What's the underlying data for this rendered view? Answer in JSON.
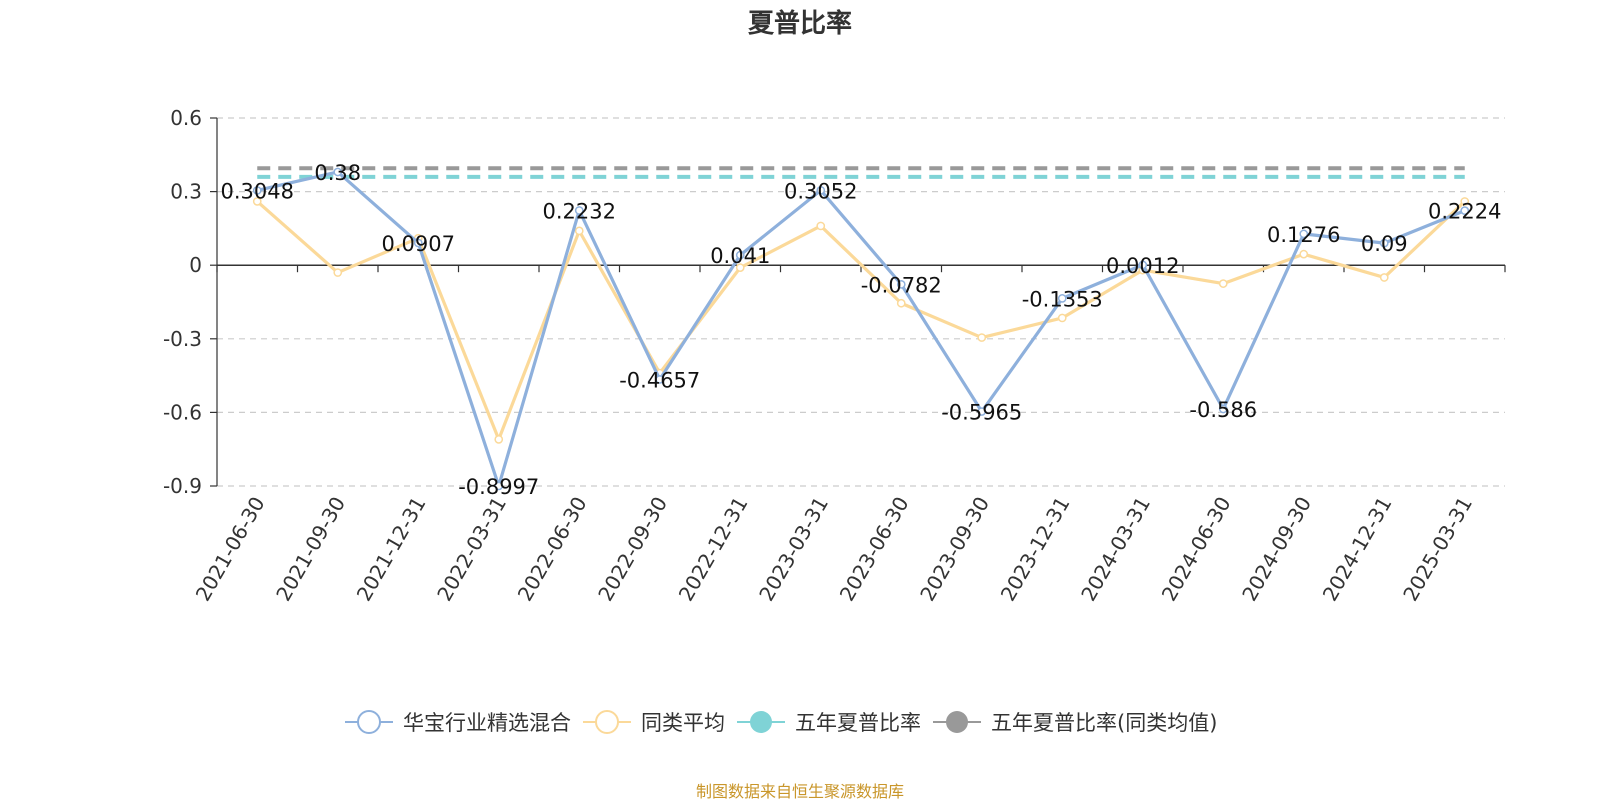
{
  "chart_data": {
    "type": "line",
    "title": "夏普比率",
    "categories": [
      "2021-06-30",
      "2021-09-30",
      "2021-12-31",
      "2022-03-31",
      "2022-06-30",
      "2022-09-30",
      "2022-12-31",
      "2023-03-31",
      "2023-06-30",
      "2023-09-30",
      "2023-12-31",
      "2024-03-31",
      "2024-06-30",
      "2024-09-30",
      "2024-12-31",
      "2025-03-31"
    ],
    "ylim": [
      -0.9,
      0.6
    ],
    "yticks": [
      0.6,
      0.3,
      0,
      -0.3,
      -0.6,
      -0.9
    ],
    "ytick_labels": [
      "0.6",
      "0.3",
      "0",
      "-0.3",
      "-0.6",
      "-0.9"
    ],
    "grid": true,
    "legend_position": "bottom",
    "series": [
      {
        "name": "华宝行业精选混合",
        "color": "#8eb0dc",
        "values": [
          0.3048,
          0.38,
          0.0907,
          -0.8997,
          0.2232,
          -0.4657,
          0.041,
          0.3052,
          -0.0782,
          -0.5965,
          -0.1353,
          0.0012,
          -0.586,
          0.1276,
          0.09,
          0.2224
        ],
        "labels": [
          "0.3048",
          "0.38",
          "0.0907",
          "-0.8997",
          "0.2232",
          "-0.4657",
          "0.041",
          "0.3052",
          "-0.0782",
          "-0.5965",
          "-0.1353",
          "0.0012",
          "-0.586",
          "0.1276",
          "0.09",
          "0.2224"
        ]
      },
      {
        "name": "同类平均",
        "color": "#fbd999",
        "values": [
          0.26,
          -0.03,
          0.11,
          -0.71,
          0.14,
          -0.44,
          -0.01,
          0.16,
          -0.155,
          -0.295,
          -0.215,
          -0.02,
          -0.075,
          0.045,
          -0.05,
          0.26
        ]
      },
      {
        "name": "五年夏普比率",
        "color": "#7fd3d6",
        "constant": 0.36
      },
      {
        "name": "五年夏普比率(同类均值)",
        "color": "#999999",
        "constant": 0.395
      }
    ],
    "source_note": "制图数据来自恒生聚源数据库"
  }
}
